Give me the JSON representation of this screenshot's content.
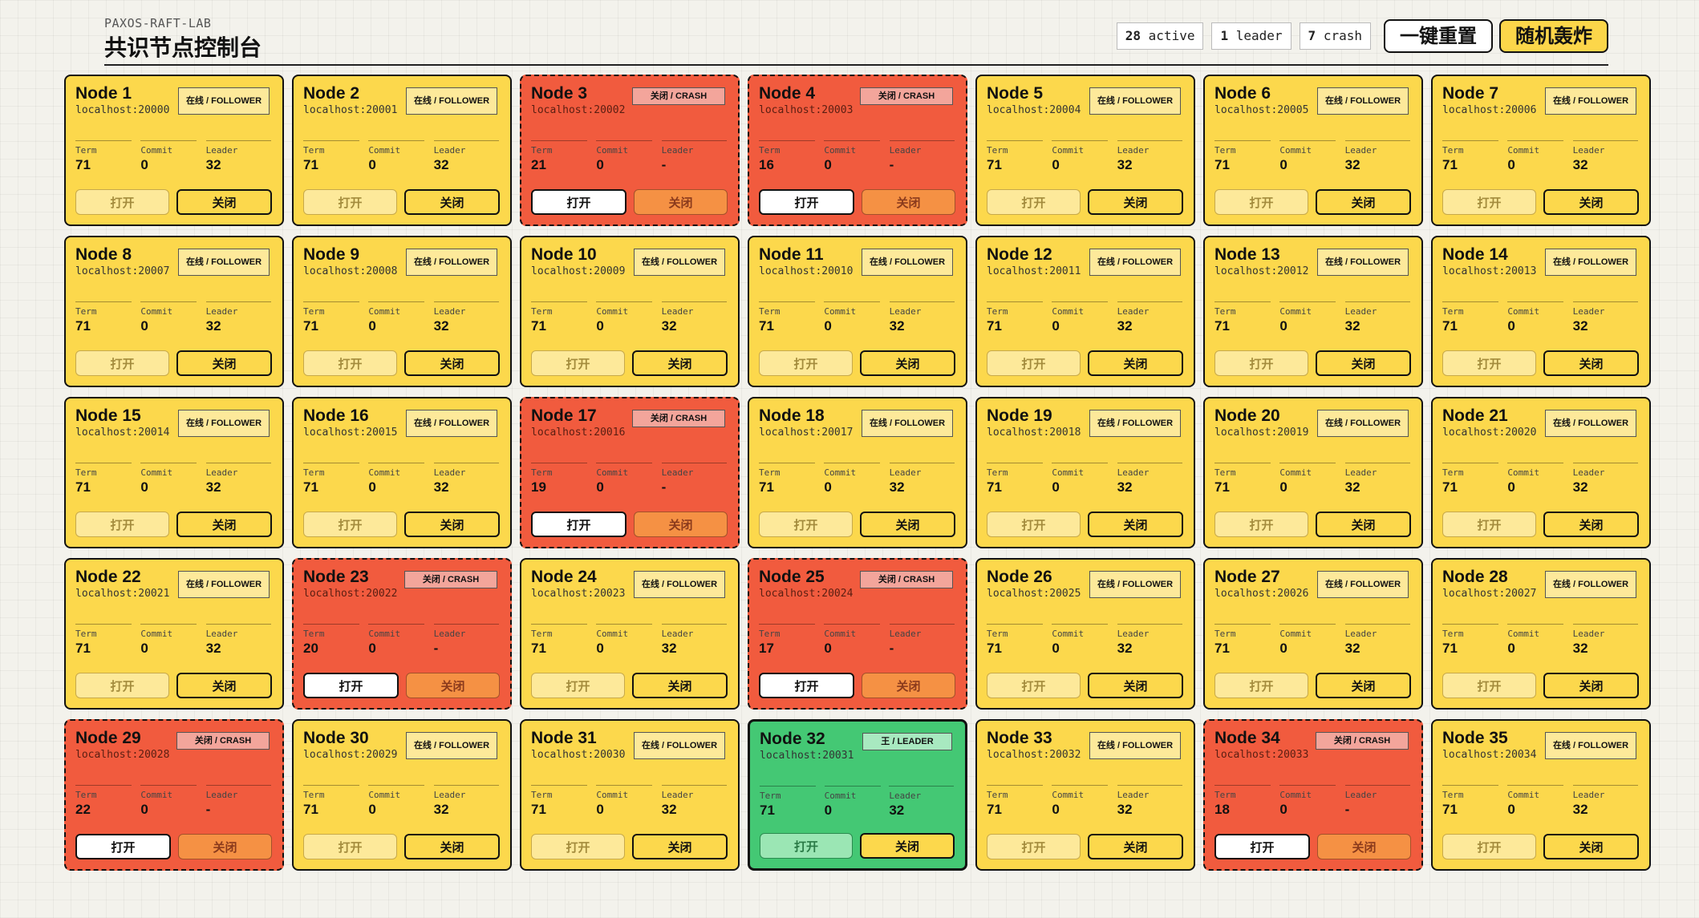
{
  "header": {
    "subtitle": "PAXOS-RAFT-LAB",
    "title": "共识节点控制台",
    "stats": [
      {
        "value": "28",
        "label": "active"
      },
      {
        "value": "1",
        "label": "leader"
      },
      {
        "value": "7",
        "label": "crash"
      }
    ],
    "reset_label": "一键重置",
    "bomb_label": "随机轰炸"
  },
  "labels": {
    "term": "Term",
    "commit": "Commit",
    "leader": "Leader",
    "open": "打开",
    "close": "关闭",
    "badge_follower": "在线 / FOLLOWER",
    "badge_crash": "关闭 / CRASH",
    "badge_leader": "王 / LEADER"
  },
  "colors": {
    "follower": "#fcd84c",
    "crash": "#f15b3e",
    "leader": "#44c874"
  },
  "nodes": [
    {
      "name": "Node 1",
      "host": "localhost:20000",
      "state": "follower",
      "term": "71",
      "commit": "0",
      "leader": "32"
    },
    {
      "name": "Node 2",
      "host": "localhost:20001",
      "state": "follower",
      "term": "71",
      "commit": "0",
      "leader": "32"
    },
    {
      "name": "Node 3",
      "host": "localhost:20002",
      "state": "crash",
      "term": "21",
      "commit": "0",
      "leader": "-"
    },
    {
      "name": "Node 4",
      "host": "localhost:20003",
      "state": "crash",
      "term": "16",
      "commit": "0",
      "leader": "-"
    },
    {
      "name": "Node 5",
      "host": "localhost:20004",
      "state": "follower",
      "term": "71",
      "commit": "0",
      "leader": "32"
    },
    {
      "name": "Node 6",
      "host": "localhost:20005",
      "state": "follower",
      "term": "71",
      "commit": "0",
      "leader": "32"
    },
    {
      "name": "Node 7",
      "host": "localhost:20006",
      "state": "follower",
      "term": "71",
      "commit": "0",
      "leader": "32"
    },
    {
      "name": "Node 8",
      "host": "localhost:20007",
      "state": "follower",
      "term": "71",
      "commit": "0",
      "leader": "32"
    },
    {
      "name": "Node 9",
      "host": "localhost:20008",
      "state": "follower",
      "term": "71",
      "commit": "0",
      "leader": "32"
    },
    {
      "name": "Node 10",
      "host": "localhost:20009",
      "state": "follower",
      "term": "71",
      "commit": "0",
      "leader": "32"
    },
    {
      "name": "Node 11",
      "host": "localhost:20010",
      "state": "follower",
      "term": "71",
      "commit": "0",
      "leader": "32"
    },
    {
      "name": "Node 12",
      "host": "localhost:20011",
      "state": "follower",
      "term": "71",
      "commit": "0",
      "leader": "32"
    },
    {
      "name": "Node 13",
      "host": "localhost:20012",
      "state": "follower",
      "term": "71",
      "commit": "0",
      "leader": "32"
    },
    {
      "name": "Node 14",
      "host": "localhost:20013",
      "state": "follower",
      "term": "71",
      "commit": "0",
      "leader": "32"
    },
    {
      "name": "Node 15",
      "host": "localhost:20014",
      "state": "follower",
      "term": "71",
      "commit": "0",
      "leader": "32"
    },
    {
      "name": "Node 16",
      "host": "localhost:20015",
      "state": "follower",
      "term": "71",
      "commit": "0",
      "leader": "32"
    },
    {
      "name": "Node 17",
      "host": "localhost:20016",
      "state": "crash",
      "term": "19",
      "commit": "0",
      "leader": "-"
    },
    {
      "name": "Node 18",
      "host": "localhost:20017",
      "state": "follower",
      "term": "71",
      "commit": "0",
      "leader": "32"
    },
    {
      "name": "Node 19",
      "host": "localhost:20018",
      "state": "follower",
      "term": "71",
      "commit": "0",
      "leader": "32"
    },
    {
      "name": "Node 20",
      "host": "localhost:20019",
      "state": "follower",
      "term": "71",
      "commit": "0",
      "leader": "32"
    },
    {
      "name": "Node 21",
      "host": "localhost:20020",
      "state": "follower",
      "term": "71",
      "commit": "0",
      "leader": "32"
    },
    {
      "name": "Node 22",
      "host": "localhost:20021",
      "state": "follower",
      "term": "71",
      "commit": "0",
      "leader": "32"
    },
    {
      "name": "Node 23",
      "host": "localhost:20022",
      "state": "crash",
      "term": "20",
      "commit": "0",
      "leader": "-"
    },
    {
      "name": "Node 24",
      "host": "localhost:20023",
      "state": "follower",
      "term": "71",
      "commit": "0",
      "leader": "32"
    },
    {
      "name": "Node 25",
      "host": "localhost:20024",
      "state": "crash",
      "term": "17",
      "commit": "0",
      "leader": "-"
    },
    {
      "name": "Node 26",
      "host": "localhost:20025",
      "state": "follower",
      "term": "71",
      "commit": "0",
      "leader": "32"
    },
    {
      "name": "Node 27",
      "host": "localhost:20026",
      "state": "follower",
      "term": "71",
      "commit": "0",
      "leader": "32"
    },
    {
      "name": "Node 28",
      "host": "localhost:20027",
      "state": "follower",
      "term": "71",
      "commit": "0",
      "leader": "32"
    },
    {
      "name": "Node 29",
      "host": "localhost:20028",
      "state": "crash",
      "term": "22",
      "commit": "0",
      "leader": "-"
    },
    {
      "name": "Node 30",
      "host": "localhost:20029",
      "state": "follower",
      "term": "71",
      "commit": "0",
      "leader": "32"
    },
    {
      "name": "Node 31",
      "host": "localhost:20030",
      "state": "follower",
      "term": "71",
      "commit": "0",
      "leader": "32"
    },
    {
      "name": "Node 32",
      "host": "localhost:20031",
      "state": "leader",
      "term": "71",
      "commit": "0",
      "leader": "32"
    },
    {
      "name": "Node 33",
      "host": "localhost:20032",
      "state": "follower",
      "term": "71",
      "commit": "0",
      "leader": "32"
    },
    {
      "name": "Node 34",
      "host": "localhost:20033",
      "state": "crash",
      "term": "18",
      "commit": "0",
      "leader": "-"
    },
    {
      "name": "Node 35",
      "host": "localhost:20034",
      "state": "follower",
      "term": "71",
      "commit": "0",
      "leader": "32"
    }
  ]
}
